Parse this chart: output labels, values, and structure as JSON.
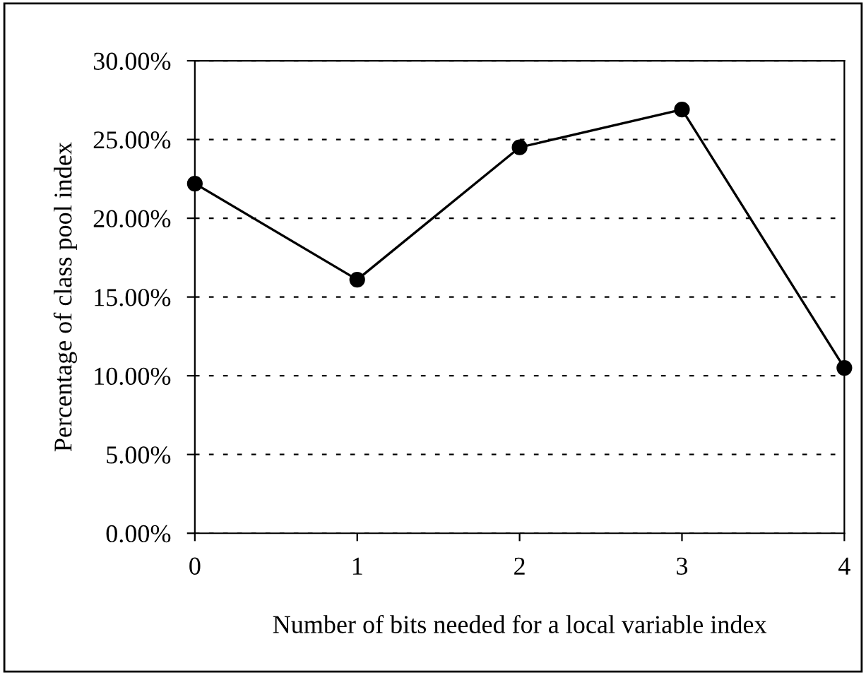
{
  "chart_data": {
    "type": "line",
    "xlabel": "Number of bits needed for a local variable index",
    "ylabel": "Percentage of class pool index",
    "x": [
      0,
      1,
      2,
      3,
      4
    ],
    "series": [
      {
        "color": "#000000",
        "values": [
          22.2,
          16.1,
          24.5,
          26.9,
          10.5
        ]
      }
    ],
    "xlim": [
      0,
      4
    ],
    "xticks": [
      0,
      1,
      2,
      3,
      4
    ],
    "ylim": [
      0,
      30
    ],
    "yticks": [
      {
        "value": 0,
        "label": "0.00%"
      },
      {
        "value": 5,
        "label": "5.00%"
      },
      {
        "value": 10,
        "label": "10.00%"
      },
      {
        "value": 15,
        "label": "15.00%"
      },
      {
        "value": 20,
        "label": "20.00%"
      },
      {
        "value": 25,
        "label": "25.00%"
      },
      {
        "value": 30,
        "label": "30.00%"
      }
    ],
    "grid": "y",
    "marker": "circle",
    "line_style": "solid",
    "legend": false
  }
}
